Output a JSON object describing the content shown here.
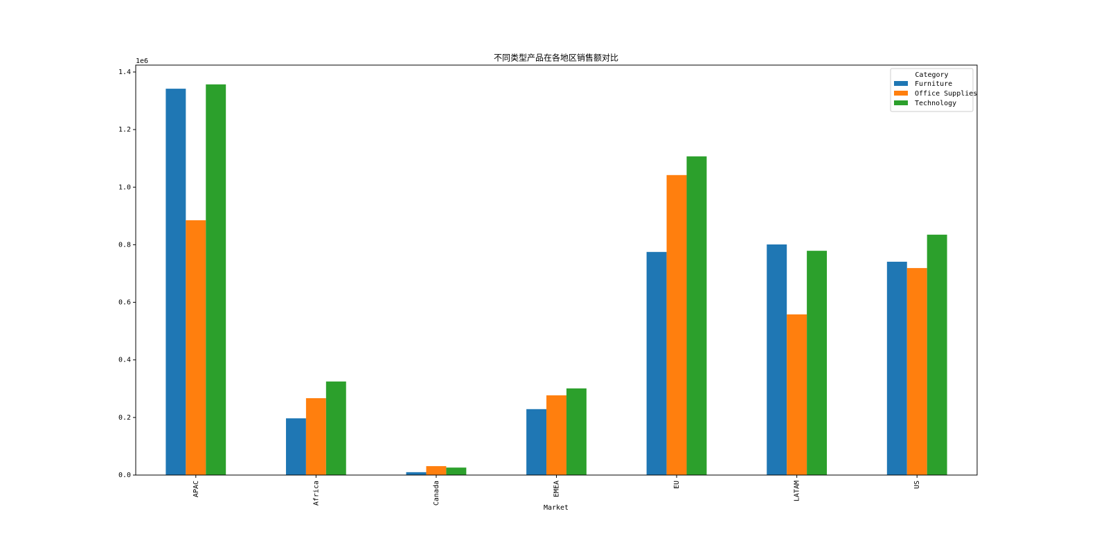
{
  "chart_data": {
    "type": "bar",
    "title": "不同类型产品在各地区销售额对比",
    "x_label": "Market",
    "y_offset_label": "1e6",
    "categories": [
      "APAC",
      "Africa",
      "Canada",
      "EMEA",
      "EU",
      "LATAM",
      "US"
    ],
    "series": [
      {
        "name": "Furniture",
        "color": "#1f77b4",
        "values": [
          1.342,
          0.197,
          0.01,
          0.229,
          0.775,
          0.801,
          0.741
        ]
      },
      {
        "name": "Office Supplies",
        "color": "#ff7f0e",
        "values": [
          0.885,
          0.267,
          0.031,
          0.277,
          1.042,
          0.558,
          0.719
        ]
      },
      {
        "name": "Technology",
        "color": "#2ca02c",
        "values": [
          1.357,
          0.325,
          0.026,
          0.301,
          1.107,
          0.779,
          0.835
        ]
      }
    ],
    "legend_title": "Category",
    "legend": "upper right",
    "ylim": [
      0,
      1.424
    ],
    "yticks": [
      {
        "value": 0,
        "label": "0.0"
      },
      0.2,
      0.4,
      0.6,
      0.8,
      {
        "value": 1,
        "label": "1.0"
      },
      1.2,
      1.4
    ],
    "grid": false
  }
}
